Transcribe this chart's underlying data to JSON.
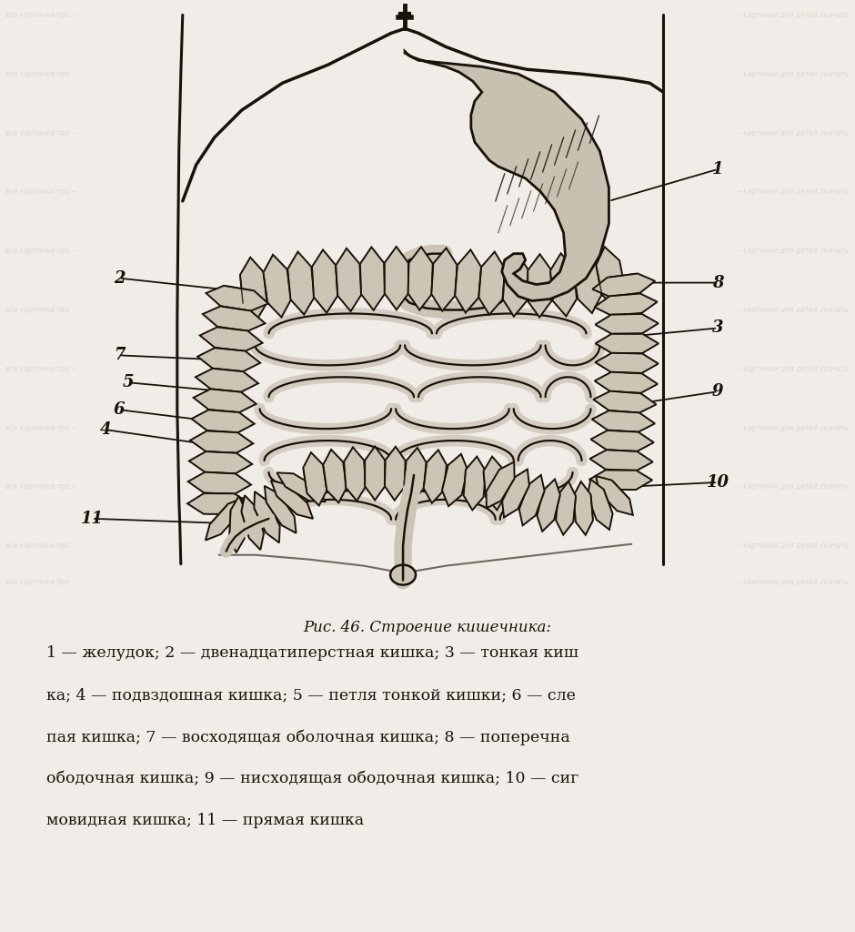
{
  "bg_color": "#e8e4dc",
  "fig_width": 9.4,
  "fig_height": 10.24,
  "draw_color": "#1a1208",
  "light_bg": "#f0ece4",
  "title": "Рис. 46. Строение кишечника:",
  "caption_lines": [
    "1 — желудок; 2 — двенадцатиперстная кишка; 3 — тонкая киш",
    "ка; 4 — подвздошная кишка; 5 — петля тонкой кишки; 6 — сле",
    "пая кишка; 7 — восходящая оболочная кишка; 8 — поперечна",
    "ободочная кишка; 9 — нисходящая ободочная кишка; 10 — сиг",
    "мовидная кишка; 11 — прямая кишка"
  ],
  "wm_color": "#b0a898",
  "wm_alpha": 0.35,
  "wm_size": 6.0
}
